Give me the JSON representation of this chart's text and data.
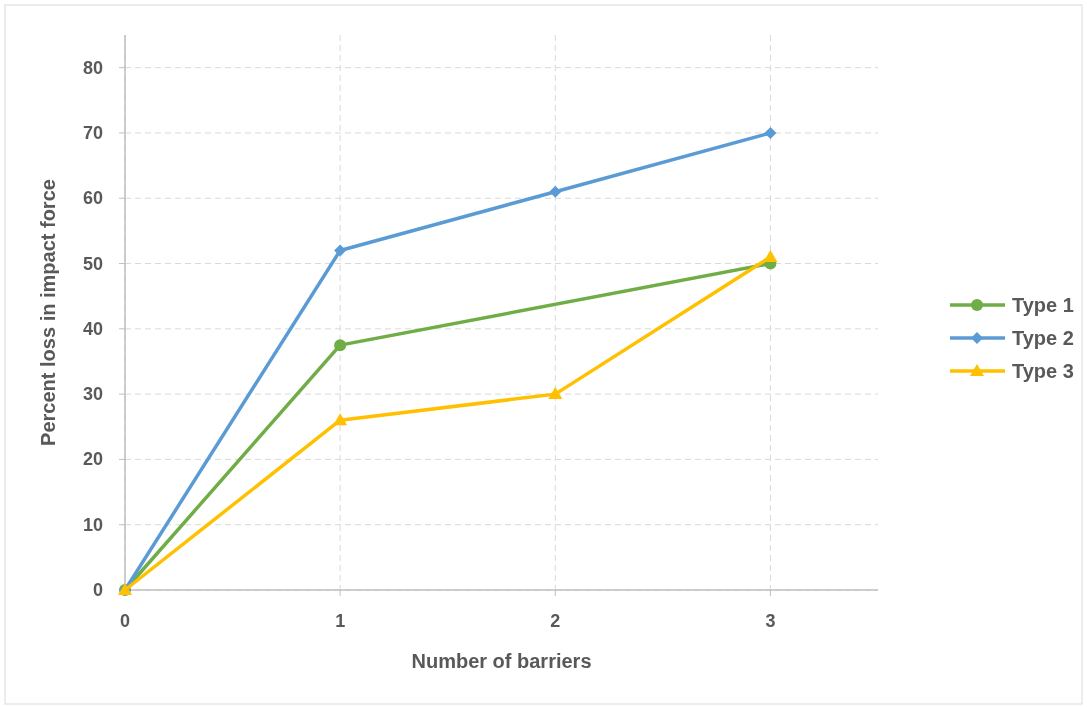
{
  "chart_data": {
    "type": "line",
    "xlabel": "Number of barriers",
    "ylabel": "Percent loss in impact force",
    "xlim": [
      0,
      3.5
    ],
    "xticks": [
      0,
      1,
      2,
      3
    ],
    "ylim": [
      0,
      85
    ],
    "yticks": [
      0,
      10,
      20,
      30,
      40,
      50,
      60,
      70,
      80
    ],
    "grid": true,
    "legend": "right",
    "line_style": "solid",
    "series": [
      {
        "name": "Type 1",
        "color": "#70ad47",
        "marker": "circle",
        "x": [
          0,
          1,
          3
        ],
        "values": [
          0,
          37.5,
          50
        ]
      },
      {
        "name": "Type 2",
        "color": "#5b9bd5",
        "marker": "diamond",
        "x": [
          0,
          1,
          2,
          3
        ],
        "values": [
          0,
          52,
          61,
          70
        ]
      },
      {
        "name": "Type 3",
        "color": "#ffc000",
        "marker": "triangle",
        "x": [
          0,
          1,
          2,
          3
        ],
        "values": [
          0,
          26,
          30,
          51
        ]
      }
    ]
  }
}
